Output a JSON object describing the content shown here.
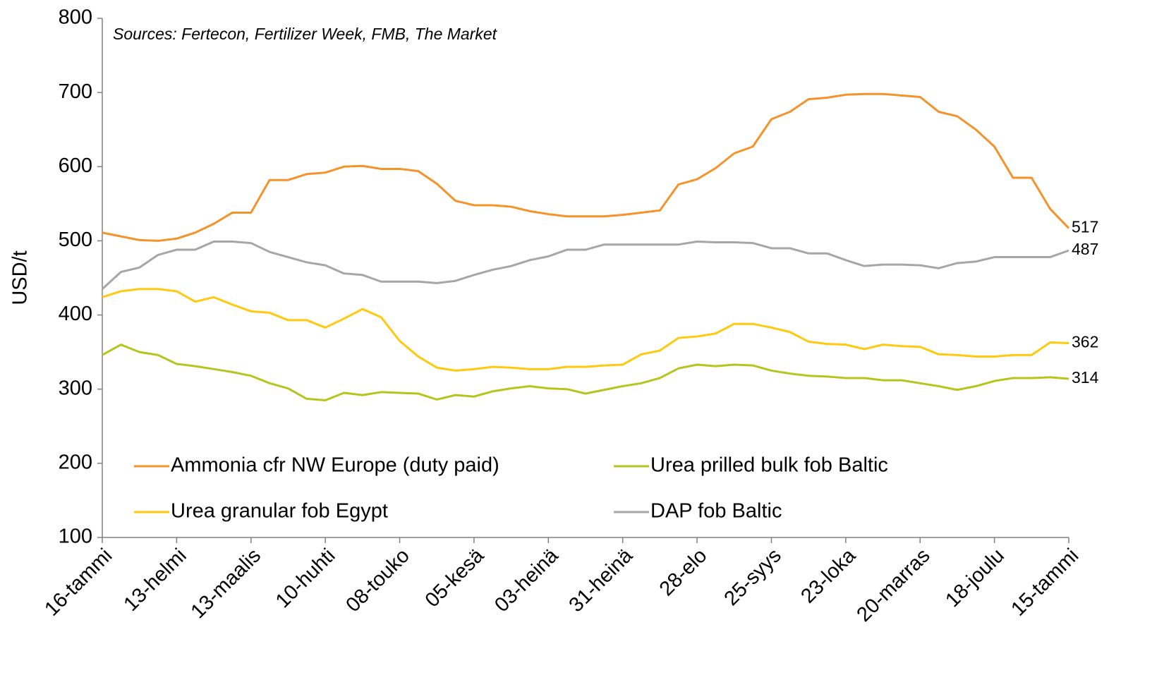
{
  "chart_data": {
    "type": "line",
    "subtitle": "Sources: Fertecon, Fertilizer Week, FMB, The Market",
    "y_label": "USD/t",
    "categories": [
      "16-tammi",
      null,
      null,
      null,
      "13-helmi",
      null,
      null,
      null,
      "13-maalis",
      null,
      null,
      null,
      "10-huhti",
      null,
      null,
      null,
      "08-touko",
      null,
      null,
      null,
      "05-kesä",
      null,
      null,
      null,
      "03-heinä",
      null,
      null,
      null,
      "31-heinä",
      null,
      null,
      null,
      "28-elo",
      null,
      null,
      null,
      "25-syys",
      null,
      null,
      null,
      "23-loka",
      null,
      null,
      null,
      "20-marras",
      null,
      null,
      null,
      "18-joulu",
      null,
      null,
      null,
      "15-tammi"
    ],
    "ylim": [
      100,
      800
    ],
    "yticks": [
      100,
      200,
      300,
      400,
      500,
      600,
      700,
      800
    ],
    "grid": false,
    "legend": "bottom",
    "series": [
      {
        "name": "Ammonia cfr NW Europe (duty paid)",
        "color": "#f5922a",
        "values": [
          511,
          506,
          501,
          500,
          503,
          511,
          523,
          538,
          538,
          582,
          582,
          590,
          592,
          600,
          601,
          597,
          597,
          594,
          577,
          554,
          548,
          548,
          546,
          540,
          536,
          533,
          533,
          533,
          535,
          538,
          541,
          576,
          583,
          598,
          618,
          627,
          664,
          674,
          691,
          693,
          697,
          698,
          698,
          696,
          694,
          674,
          668,
          650,
          627,
          585,
          585,
          543,
          517
        ]
      },
      {
        "name": "Urea prilled bulk fob Baltic",
        "color": "#b3c61c",
        "values": [
          346,
          360,
          350,
          346,
          334,
          331,
          327,
          323,
          318,
          308,
          301,
          287,
          285,
          295,
          292,
          296,
          295,
          294,
          286,
          292,
          290,
          297,
          301,
          304,
          301,
          300,
          294,
          299,
          304,
          308,
          315,
          328,
          333,
          331,
          333,
          332,
          325,
          321,
          318,
          317,
          315,
          315,
          312,
          312,
          308,
          304,
          299,
          304,
          311,
          315,
          315,
          316,
          314
        ]
      },
      {
        "name": "Urea granular fob Egypt",
        "color": "#ffc90e",
        "values": [
          424,
          432,
          435,
          435,
          432,
          418,
          424,
          414,
          405,
          403,
          393,
          393,
          383,
          395,
          408,
          397,
          365,
          344,
          329,
          325,
          327,
          330,
          329,
          327,
          327,
          330,
          330,
          332,
          333,
          347,
          352,
          369,
          371,
          375,
          388,
          388,
          383,
          377,
          364,
          361,
          360,
          354,
          360,
          358,
          357,
          347,
          346,
          344,
          344,
          346,
          346,
          363,
          362
        ]
      },
      {
        "name": "DAP fob Baltic",
        "color": "#a6a6a6",
        "values": [
          435,
          458,
          464,
          481,
          488,
          488,
          499,
          499,
          497,
          485,
          478,
          471,
          467,
          456,
          454,
          445,
          445,
          445,
          443,
          446,
          454,
          461,
          466,
          474,
          479,
          488,
          488,
          495,
          495,
          495,
          495,
          495,
          499,
          498,
          498,
          497,
          490,
          490,
          483,
          483,
          474,
          466,
          468,
          468,
          467,
          463,
          470,
          472,
          478,
          478,
          478,
          478,
          487
        ]
      }
    ]
  }
}
